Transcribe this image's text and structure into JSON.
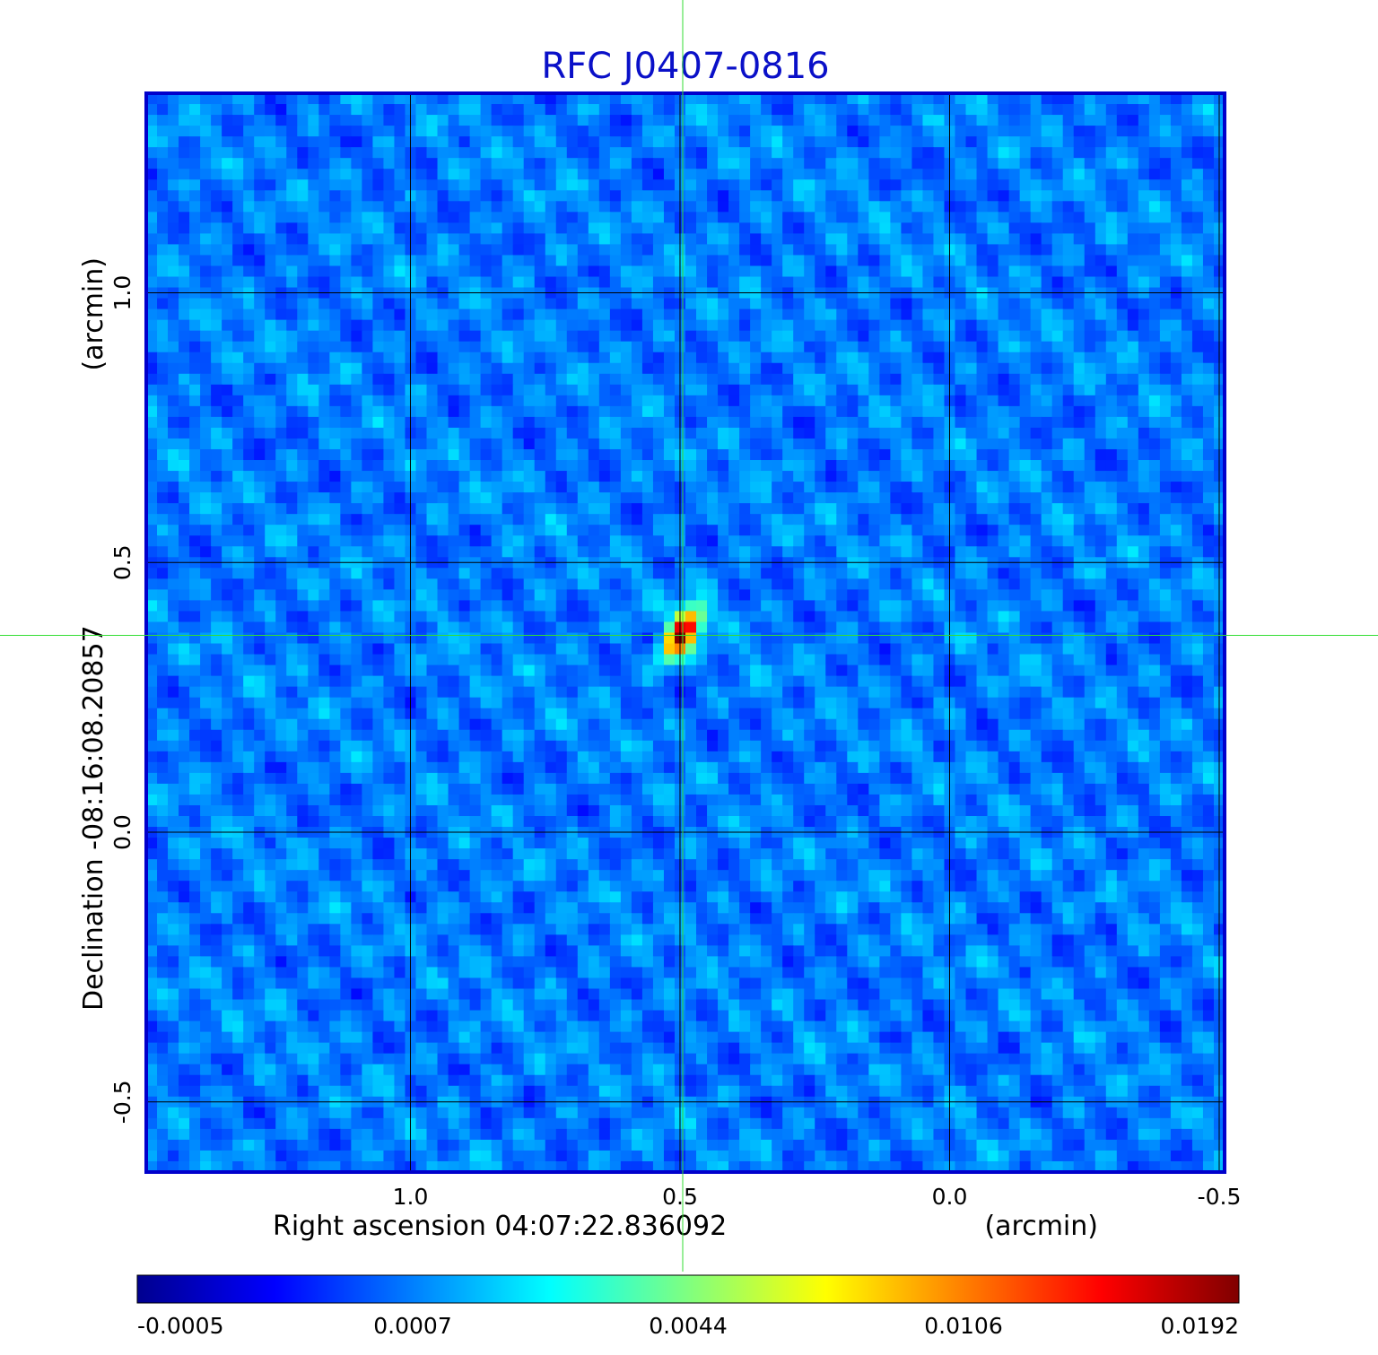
{
  "chart_data": {
    "type": "heatmap",
    "title": "RFC J0407-0816",
    "xlabel": "Right ascension  04:07:22.836092",
    "xunit": "(arcmin)",
    "ylabel": "Declination  -08:16:08.20857",
    "yunit": "(arcmin)",
    "x_ticks": [
      1.0,
      0.5,
      0.0,
      -0.5
    ],
    "x_tick_labels": [
      "1.0",
      "0.5",
      "0.0",
      "-0.5"
    ],
    "y_ticks": [
      1.0,
      0.5,
      0.0,
      -0.5
    ],
    "y_tick_labels": [
      "1.0",
      "0.5",
      "0.0",
      "-0.5"
    ],
    "xlim": [
      1.49,
      -0.51
    ],
    "ylim": [
      -0.63,
      1.37
    ],
    "x_reversed": true,
    "grid": true,
    "crosshair": {
      "x": 0.495,
      "y": 0.365
    },
    "source_peak": {
      "x": 0.495,
      "y": 0.37,
      "value": 0.0192
    },
    "colorbar": {
      "colormap": "jet",
      "tick_labels": [
        "-0.0005",
        "0.0007",
        "0.0044",
        "0.0106",
        "0.0192"
      ],
      "min": -0.0005,
      "max": 0.0192
    },
    "colors": {
      "title": "#0a10c8",
      "grid": "#000000",
      "crosshair": "#33dd33",
      "background_field": "#1a5af0"
    }
  }
}
